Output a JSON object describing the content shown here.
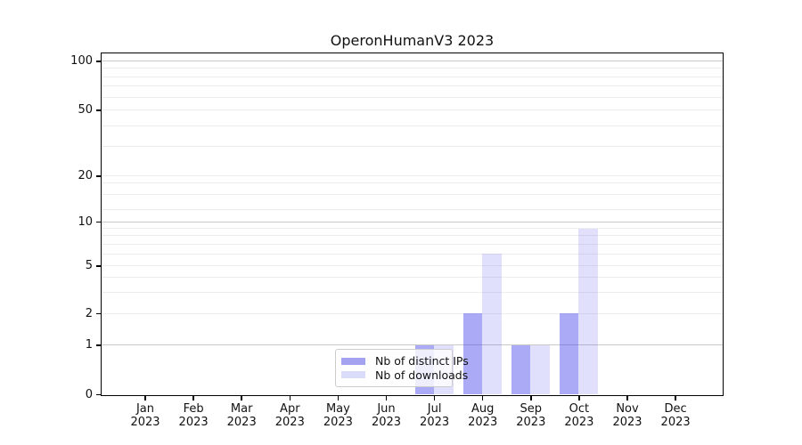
{
  "chart_data": {
    "type": "bar",
    "title": "OperonHumanV3 2023",
    "categories": [
      "Jan",
      "Feb",
      "Mar",
      "Apr",
      "May",
      "Jun",
      "Jul",
      "Aug",
      "Sep",
      "Oct",
      "Nov",
      "Dec"
    ],
    "category_year": "2023",
    "series": [
      {
        "name": "Nb of distinct IPs",
        "color": "rgba(70,70,235,0.46)",
        "legend_color": "#a3a3f2",
        "values": [
          0,
          0,
          0,
          0,
          0,
          0,
          1,
          2,
          1,
          2,
          0,
          0
        ]
      },
      {
        "name": "Nb of downloads",
        "color": "rgba(70,70,235,0.17)",
        "legend_color": "#dbdbfa",
        "values": [
          0,
          0,
          0,
          0,
          0,
          0,
          1,
          6,
          1,
          9,
          0,
          0
        ]
      }
    ],
    "xlabel": "",
    "ylabel": "",
    "y_axis": {
      "scale": "symlog",
      "ticks": [
        0,
        1,
        2,
        5,
        10,
        20,
        50,
        100
      ],
      "major_gridlines": [
        1,
        10,
        100
      ],
      "minor_gridlines": [
        2,
        3,
        4,
        5,
        6,
        7,
        8,
        9,
        12,
        15,
        18,
        20,
        30,
        40,
        50,
        60,
        70,
        80,
        90
      ],
      "range": [
        0,
        115
      ]
    },
    "legend": {
      "position": "lower center",
      "entries": [
        "Nb of distinct IPs",
        "Nb of downloads"
      ]
    },
    "grid": true,
    "colors": {
      "major_grid": "#c9c9c9",
      "minor_grid": "#ededed",
      "spine": "#000000",
      "text": "#111111"
    }
  }
}
